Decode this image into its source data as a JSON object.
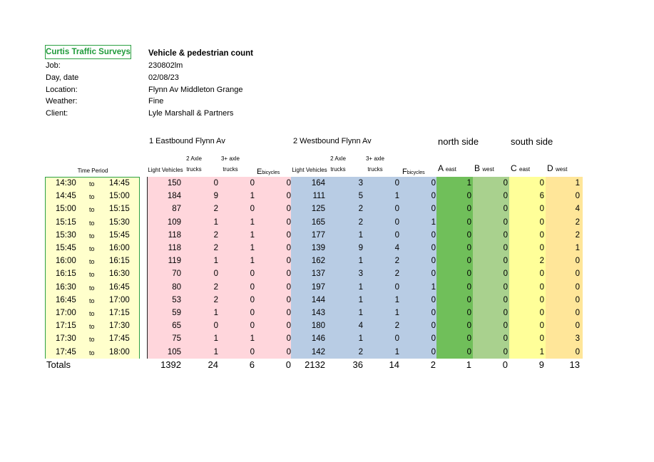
{
  "header": {
    "logo_text": "Curtis Traffic Surveys",
    "title": "Vehicle & pedestrian count",
    "fields": [
      {
        "label": "Job:",
        "value": "230802lm"
      },
      {
        "label": "Day, date",
        "value": "02/08/23"
      },
      {
        "label": "Location:",
        "value": "Flynn Av Middleton Grange"
      },
      {
        "label": "Weather:",
        "value": "Fine"
      },
      {
        "label": "Client:",
        "value": "Lyle Marshall & Partners"
      }
    ]
  },
  "groups": {
    "eastbound": "1 Eastbound Flynn Av",
    "westbound": "2 Westbound Flynn Av",
    "north": "north side",
    "south": "south side"
  },
  "columns": {
    "time_period": "Time Period",
    "light": "Light Vehicles",
    "axle2_top": "2 Axle",
    "axle2_bottom": "trucks",
    "axle3_top": "3+ axle",
    "axle3_bottom": "trucks",
    "e_letter": "E",
    "e_sub": "bicycles",
    "f_letter": "F",
    "f_sub": "bicycles",
    "a_letter": "A",
    "a_sub": "east",
    "b_letter": "B",
    "b_sub": "west",
    "c_letter": "C",
    "c_sub": "east",
    "d_letter": "D",
    "d_sub": "west"
  },
  "to_word": "to",
  "rows": [
    {
      "start": "14:30",
      "end": "14:45",
      "v": [
        150,
        0,
        0,
        0,
        164,
        3,
        0,
        0,
        1,
        0,
        0,
        1
      ]
    },
    {
      "start": "14:45",
      "end": "15:00",
      "v": [
        184,
        9,
        1,
        0,
        111,
        5,
        1,
        0,
        0,
        0,
        6,
        0
      ]
    },
    {
      "start": "15:00",
      "end": "15:15",
      "v": [
        87,
        2,
        0,
        0,
        125,
        2,
        0,
        0,
        0,
        0,
        0,
        4
      ]
    },
    {
      "start": "15:15",
      "end": "15:30",
      "v": [
        109,
        1,
        1,
        0,
        165,
        2,
        0,
        1,
        0,
        0,
        0,
        2
      ]
    },
    {
      "start": "15:30",
      "end": "15:45",
      "v": [
        118,
        2,
        1,
        0,
        177,
        1,
        0,
        0,
        0,
        0,
        0,
        2
      ]
    },
    {
      "start": "15:45",
      "end": "16:00",
      "v": [
        118,
        2,
        1,
        0,
        139,
        9,
        4,
        0,
        0,
        0,
        0,
        1
      ]
    },
    {
      "start": "16:00",
      "end": "16:15",
      "v": [
        119,
        1,
        1,
        0,
        162,
        1,
        2,
        0,
        0,
        0,
        2,
        0
      ]
    },
    {
      "start": "16:15",
      "end": "16:30",
      "v": [
        70,
        0,
        0,
        0,
        137,
        3,
        2,
        0,
        0,
        0,
        0,
        0
      ]
    },
    {
      "start": "16:30",
      "end": "16:45",
      "v": [
        80,
        2,
        0,
        0,
        197,
        1,
        0,
        1,
        0,
        0,
        0,
        0
      ]
    },
    {
      "start": "16:45",
      "end": "17:00",
      "v": [
        53,
        2,
        0,
        0,
        144,
        1,
        1,
        0,
        0,
        0,
        0,
        0
      ]
    },
    {
      "start": "17:00",
      "end": "17:15",
      "v": [
        59,
        1,
        0,
        0,
        143,
        1,
        1,
        0,
        0,
        0,
        0,
        0
      ]
    },
    {
      "start": "17:15",
      "end": "17:30",
      "v": [
        65,
        0,
        0,
        0,
        180,
        4,
        2,
        0,
        0,
        0,
        0,
        0
      ]
    },
    {
      "start": "17:30",
      "end": "17:45",
      "v": [
        75,
        1,
        1,
        0,
        146,
        1,
        0,
        0,
        0,
        0,
        0,
        3
      ]
    },
    {
      "start": "17:45",
      "end": "18:00",
      "v": [
        105,
        1,
        0,
        0,
        142,
        2,
        1,
        0,
        0,
        0,
        1,
        0
      ]
    }
  ],
  "totals": {
    "label": "Totals",
    "v": [
      1392,
      24,
      6,
      0,
      2132,
      36,
      14,
      2,
      1,
      0,
      9,
      13
    ]
  },
  "colors": {
    "time_bg": "#ffffcc",
    "eastbound_bg": "#ffd6dc",
    "westbound_bg": "#b8cce4",
    "a_bg": "#70bf5a",
    "b_bg": "#a9d18e",
    "c_bg": "#ffff99",
    "d_bg": "#ffe699",
    "logo_border": "#2ea043",
    "time_border": "#2ea043"
  }
}
